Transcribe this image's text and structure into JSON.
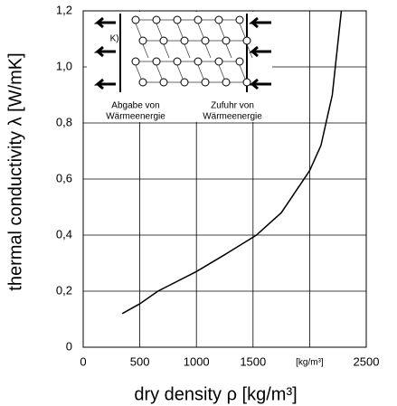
{
  "chart_data": {
    "type": "line",
    "x_label": "dry density ρ [kg/m³]",
    "y_label": "thermal conductivity λ [W/mK]",
    "x": [
      345,
      500,
      660,
      1000,
      1250,
      1530,
      1750,
      2000,
      2100,
      2200,
      2280
    ],
    "series": [
      {
        "color": "#000000",
        "values": [
          0.12,
          0.155,
          0.2,
          0.27,
          0.33,
          0.4,
          0.48,
          0.63,
          0.72,
          0.9,
          1.2
        ]
      }
    ],
    "xlim": [
      0,
      2500
    ],
    "ylim": [
      0,
      1.2
    ],
    "xticks": [
      0,
      500,
      1000,
      1500,
      {
        "value": 2000,
        "label": "[kg/m³]"
      },
      2500
    ],
    "yticks": [
      0,
      {
        "value": 0.2,
        "label": "0,2"
      },
      {
        "value": 0.4,
        "label": "0,4"
      },
      {
        "value": 0.6,
        "label": "0,6"
      },
      {
        "value": 0.8,
        "label": "0,8"
      },
      {
        "value": 1.0,
        "label": "1,0"
      },
      {
        "value": 1.2,
        "label": "1,2"
      }
    ],
    "grid": true,
    "annotations": [
      "K)]",
      "Abgabe  von",
      "Wärmeenergie",
      "Zufuhr von",
      "Wärmeenergie"
    ]
  }
}
